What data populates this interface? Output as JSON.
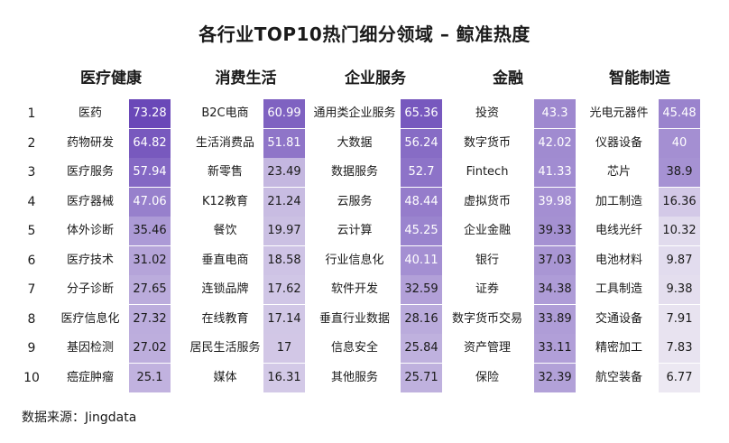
{
  "title": "各行业TOP10热门细分领域 – 鲸准热度",
  "source": "数据来源：Jingdata",
  "ranks": [
    "1",
    "2",
    "3",
    "4",
    "5",
    "6",
    "7",
    "8",
    "9",
    "10"
  ],
  "chart_data": {
    "type": "table",
    "title": "各行业TOP10热门细分领域 – 鲸准热度",
    "categories": [
      {
        "name": "医疗健康",
        "items": [
          "医药",
          "药物研发",
          "医疗服务",
          "医疗器械",
          "体外诊断",
          "医疗技术",
          "分子诊断",
          "医疗信息化",
          "基因检测",
          "癌症肿瘤"
        ],
        "values": [
          73.28,
          64.82,
          57.94,
          47.06,
          35.46,
          31.02,
          27.65,
          27.32,
          27.02,
          25.1
        ]
      },
      {
        "name": "消费生活",
        "items": [
          "B2C电商",
          "生活消费品",
          "新零售",
          "K12教育",
          "餐饮",
          "垂直电商",
          "连锁品牌",
          "在线教育",
          "居民生活服务",
          "媒体"
        ],
        "values": [
          60.99,
          51.81,
          23.49,
          21.24,
          19.97,
          18.58,
          17.62,
          17.14,
          17,
          16.31
        ]
      },
      {
        "name": "企业服务",
        "items": [
          "通用类企业服务",
          "大数据",
          "数据服务",
          "云服务",
          "云计算",
          "行业信息化",
          "软件开发",
          "垂直行业数据",
          "信息安全",
          "其他服务"
        ],
        "values": [
          65.36,
          56.24,
          52.7,
          48.44,
          45.25,
          40.11,
          32.59,
          28.16,
          25.84,
          25.71
        ]
      },
      {
        "name": "金融",
        "items": [
          "投资",
          "数字货币",
          "Fintech",
          "虚拟货币",
          "企业金融",
          "银行",
          "证券",
          "数字货币交易",
          "资产管理",
          "保险"
        ],
        "values": [
          43.3,
          42.02,
          41.33,
          39.98,
          39.33,
          37.03,
          34.38,
          33.89,
          33.11,
          32.39
        ]
      },
      {
        "name": "智能制造",
        "items": [
          "光电元器件",
          "仪器设备",
          "芯片",
          "加工制造",
          "电线光纤",
          "电池材料",
          "工具制造",
          "交通设备",
          "精密加工",
          "航空装备"
        ],
        "values": [
          45.48,
          40,
          38.9,
          16.36,
          10.32,
          9.87,
          9.38,
          7.91,
          7.83,
          6.77
        ]
      }
    ],
    "value_labels": [
      [
        "73.28",
        "64.82",
        "57.94",
        "47.06",
        "35.46",
        "31.02",
        "27.65",
        "27.32",
        "27.02",
        "25.1"
      ],
      [
        "60.99",
        "51.81",
        "23.49",
        "21.24",
        "19.97",
        "18.58",
        "17.62",
        "17.14",
        "17",
        "16.31"
      ],
      [
        "65.36",
        "56.24",
        "52.7",
        "48.44",
        "45.25",
        "40.11",
        "32.59",
        "28.16",
        "25.84",
        "25.71"
      ],
      [
        "43.3",
        "42.02",
        "41.33",
        "39.98",
        "39.33",
        "37.03",
        "34.38",
        "33.89",
        "33.11",
        "32.39"
      ],
      [
        "45.48",
        "40",
        "38.9",
        "16.36",
        "10.32",
        "9.87",
        "9.38",
        "7.91",
        "7.83",
        "6.77"
      ]
    ],
    "color_scale": {
      "low": "#ece8f2",
      "high": "#6a48b8",
      "min": 6.77,
      "max": 73.28
    }
  }
}
